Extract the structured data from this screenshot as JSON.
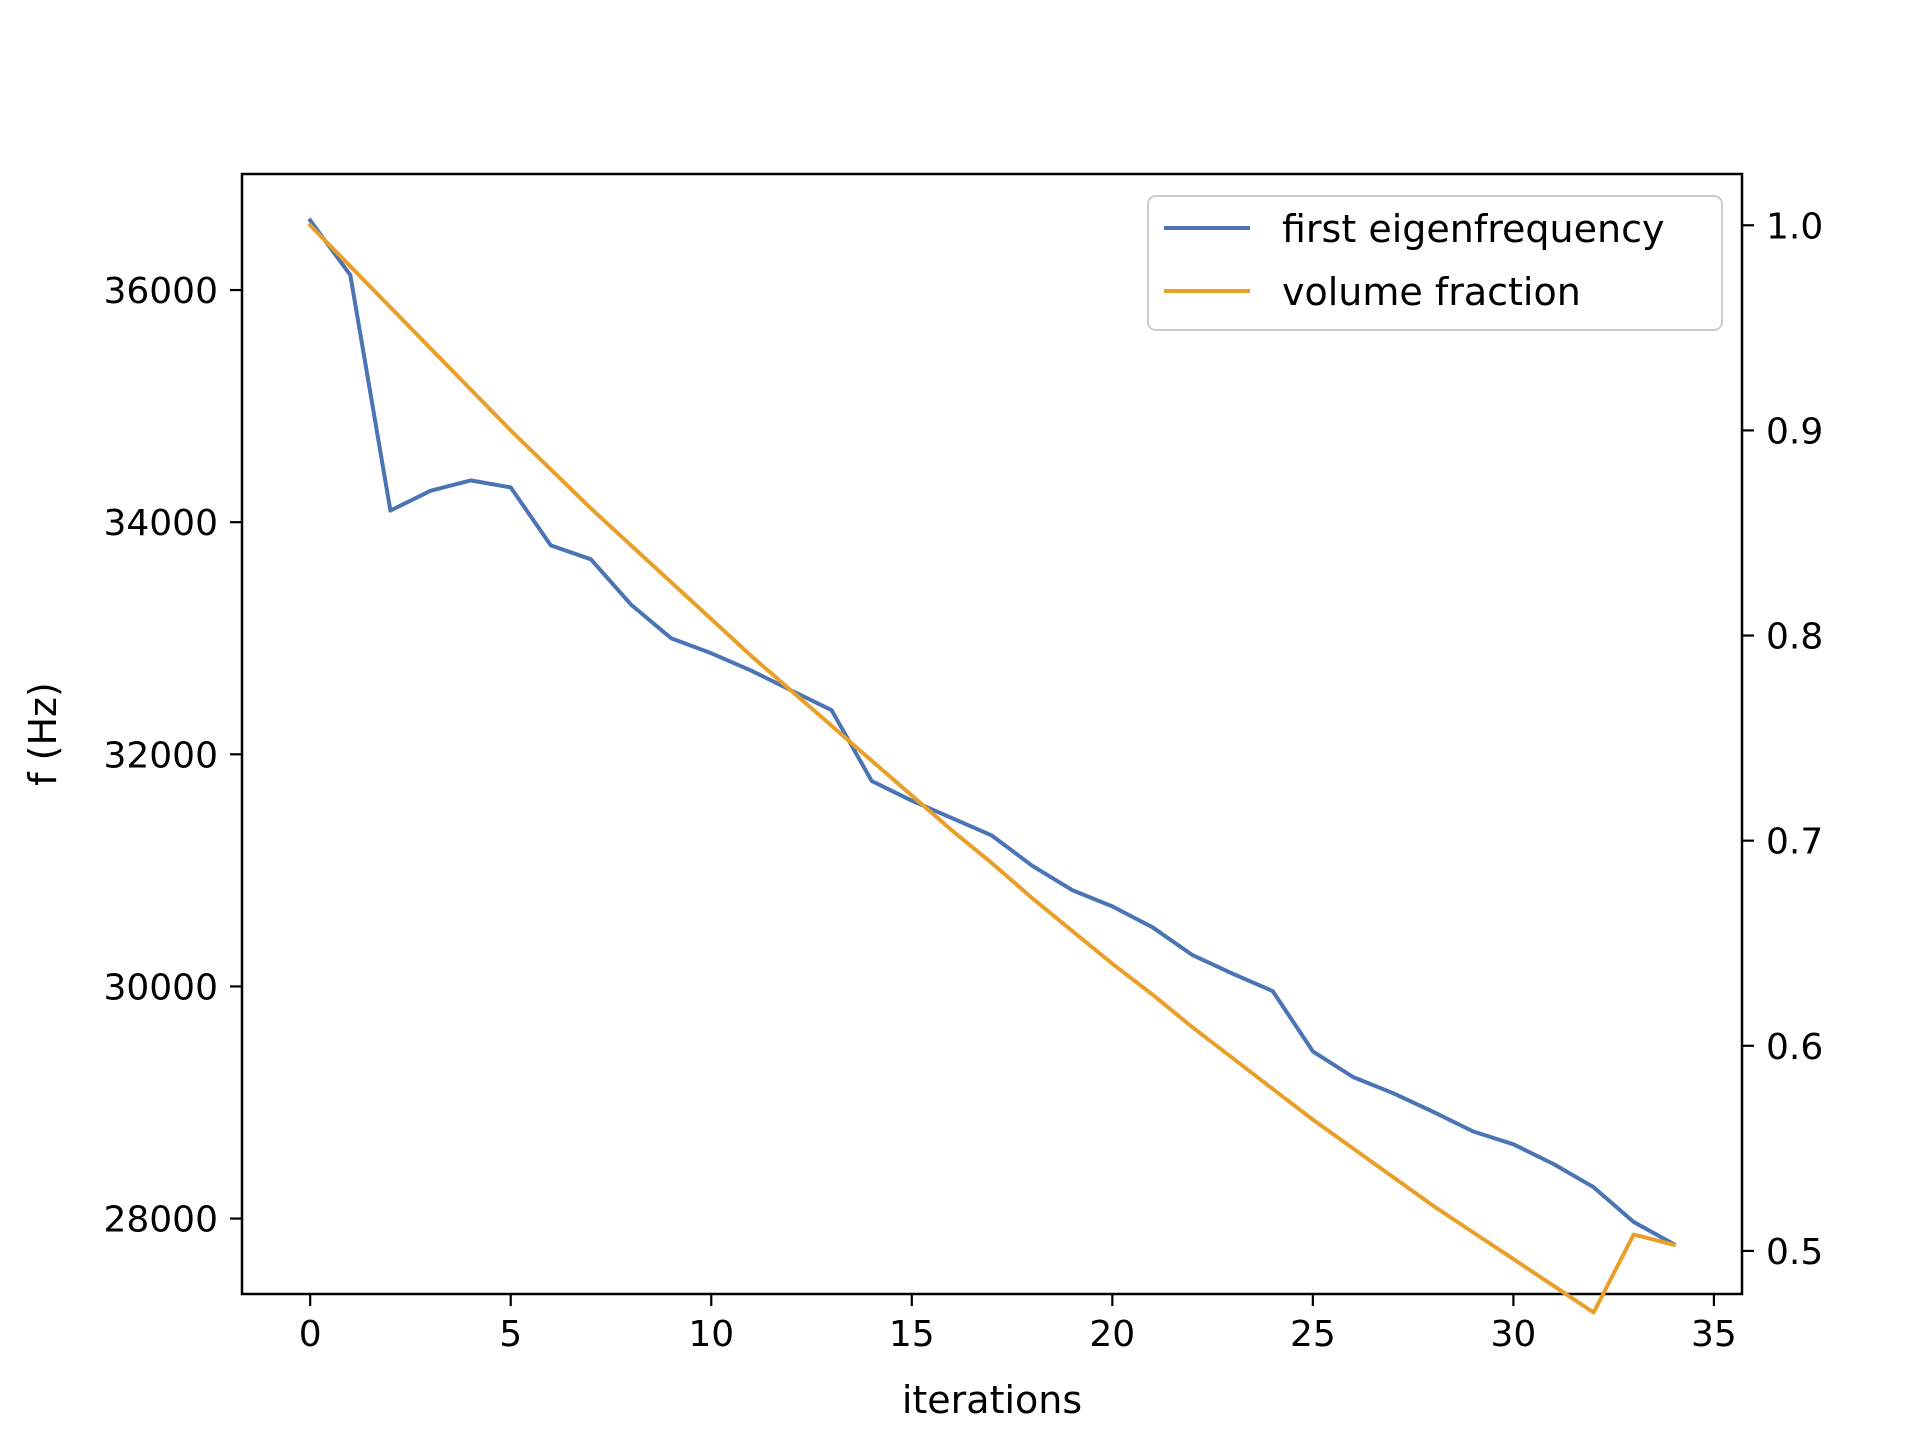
{
  "chart_data": {
    "type": "line",
    "xlabel": "iterations",
    "ylabel": "f (Hz)",
    "y2label": "",
    "xlim": [
      -1.7,
      35.7
    ],
    "ylim": [
      27350,
      37000
    ],
    "y2lim": [
      0.479,
      1.025
    ],
    "xticks": [
      0,
      5,
      10,
      15,
      20,
      25,
      30,
      35
    ],
    "yticks": [
      28000,
      30000,
      32000,
      34000,
      36000
    ],
    "y2ticks": [
      0.5,
      0.6,
      0.7,
      0.8,
      0.9,
      1.0
    ],
    "legend_position": "top-right",
    "grid": false,
    "series": [
      {
        "name": "first eigenfrequency",
        "axis": "left",
        "color": "#4a74b4",
        "x": [
          0,
          1,
          2,
          3,
          4,
          5,
          6,
          7,
          8,
          9,
          10,
          11,
          12,
          13,
          14,
          15,
          16,
          17,
          18,
          19,
          20,
          21,
          22,
          23,
          24,
          25,
          26,
          27,
          28,
          29,
          30,
          31,
          32,
          33,
          34
        ],
        "values": [
          36600,
          36130,
          34100,
          34270,
          34360,
          34300,
          33800,
          33680,
          33290,
          33000,
          32870,
          32720,
          32550,
          32380,
          31770,
          31600,
          31450,
          31300,
          31040,
          30830,
          30690,
          30510,
          30270,
          30110,
          29960,
          29440,
          29220,
          29080,
          28920,
          28750,
          28640,
          28470,
          28270,
          27970,
          27780
        ]
      },
      {
        "name": "volume fraction",
        "axis": "right",
        "color": "#e8a02a",
        "x": [
          0,
          1,
          2,
          3,
          4,
          5,
          6,
          7,
          8,
          9,
          10,
          11,
          12,
          13,
          14,
          15,
          16,
          17,
          18,
          19,
          20,
          21,
          22,
          23,
          24,
          25,
          26,
          27,
          28,
          29,
          30,
          31,
          32,
          33,
          34
        ],
        "values": [
          1.0,
          0.98,
          0.96,
          0.94,
          0.92,
          0.9,
          0.881,
          0.862,
          0.844,
          0.826,
          0.808,
          0.79,
          0.773,
          0.756,
          0.739,
          0.722,
          0.705,
          0.689,
          0.672,
          0.656,
          0.64,
          0.625,
          0.609,
          0.594,
          0.579,
          0.564,
          0.55,
          0.536,
          0.522,
          0.509,
          0.496,
          0.483,
          0.47,
          0.508,
          0.503
        ]
      }
    ]
  }
}
